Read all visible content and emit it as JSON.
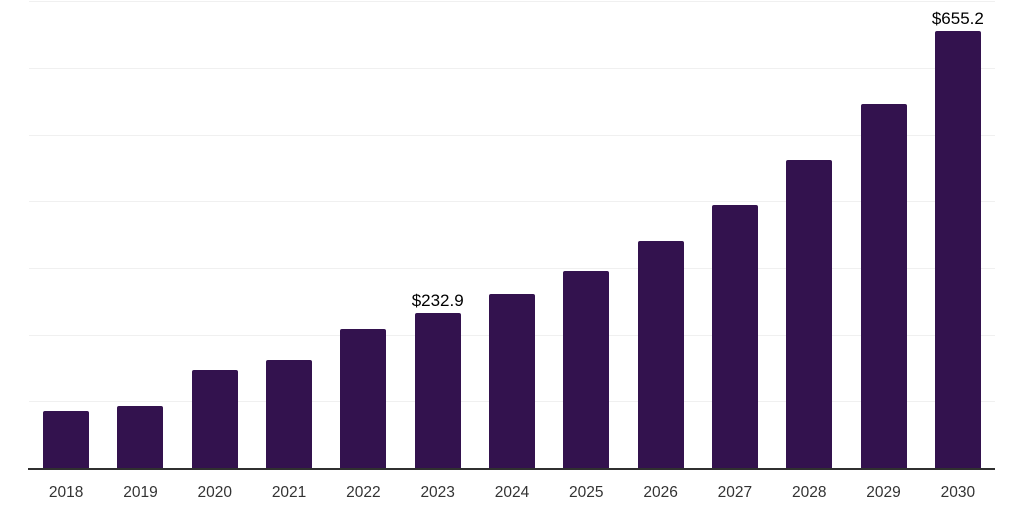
{
  "chart_data": {
    "type": "bar",
    "title": "",
    "xlabel": "",
    "ylabel": "",
    "categories": [
      "2018",
      "2019",
      "2020",
      "2021",
      "2022",
      "2023",
      "2024",
      "2025",
      "2026",
      "2027",
      "2028",
      "2029",
      "2030"
    ],
    "values": [
      85.0,
      92.5,
      147.5,
      162.5,
      208.0,
      232.9,
      261.0,
      296.0,
      341.0,
      395.0,
      462.0,
      546.5,
      655.2
    ],
    "data_labels": [
      "",
      "",
      "",
      "",
      "",
      "$232.9",
      "",
      "",
      "",
      "",
      "",
      "",
      "$655.2"
    ],
    "ylim": [
      0,
      700
    ],
    "grid": "horizontal",
    "gridline_step": 100,
    "legend": "none"
  },
  "colors": {
    "bar": "#33124E",
    "axis_line": "#303030",
    "gridline": "#F0F0F0",
    "tick_label": "#333333",
    "data_label": "#000000",
    "background": "#FFFFFF"
  }
}
